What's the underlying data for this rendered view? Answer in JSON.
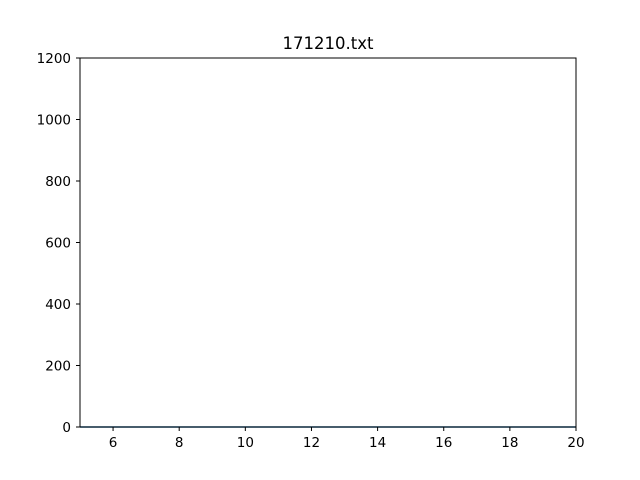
{
  "chart_data": {
    "type": "line",
    "title": "171210.txt",
    "xlabel": "",
    "ylabel": "",
    "xlim": [
      5,
      20
    ],
    "ylim": [
      0,
      1200
    ],
    "xticks": [
      6,
      8,
      10,
      12,
      14,
      16,
      18,
      20
    ],
    "yticks": [
      0,
      200,
      400,
      600,
      800,
      1000,
      1200
    ],
    "grid": false,
    "series": [
      {
        "color": "#1f77b4",
        "x": [
          5,
          20
        ],
        "y": [
          0,
          0
        ]
      }
    ]
  }
}
